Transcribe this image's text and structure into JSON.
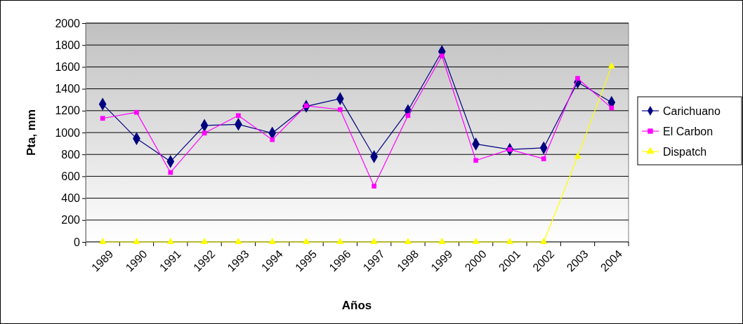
{
  "chart_data": {
    "type": "line",
    "xlabel": "Años",
    "ylabel": "Pta, mm",
    "categories": [
      "1989",
      "1990",
      "1991",
      "1992",
      "1993",
      "1994",
      "1995",
      "1996",
      "1997",
      "1998",
      "1999",
      "2000",
      "2001",
      "2002",
      "2003",
      "2004"
    ],
    "ylim": [
      0,
      2000
    ],
    "yticks": [
      0,
      200,
      400,
      600,
      800,
      1000,
      1200,
      1400,
      1600,
      1800,
      2000
    ],
    "grid": "y",
    "legend": "right",
    "series": [
      {
        "name": "Carichuano",
        "color": "#000080",
        "marker": "diamond",
        "values": [
          1260,
          945,
          735,
          1065,
          1075,
          995,
          1240,
          1310,
          780,
          1200,
          1740,
          895,
          845,
          860,
          1460,
          1275
        ]
      },
      {
        "name": "El Carbon",
        "color": "#ff00ff",
        "marker": "square",
        "values": [
          1130,
          1185,
          635,
          995,
          1155,
          935,
          1245,
          1210,
          510,
          1155,
          1700,
          745,
          845,
          760,
          1495,
          1225
        ]
      },
      {
        "name": "Dispatch",
        "color": "#ffff00",
        "marker": "triangle",
        "values": [
          0,
          0,
          0,
          0,
          0,
          0,
          0,
          0,
          0,
          0,
          0,
          0,
          0,
          0,
          780,
          1605
        ]
      }
    ]
  }
}
